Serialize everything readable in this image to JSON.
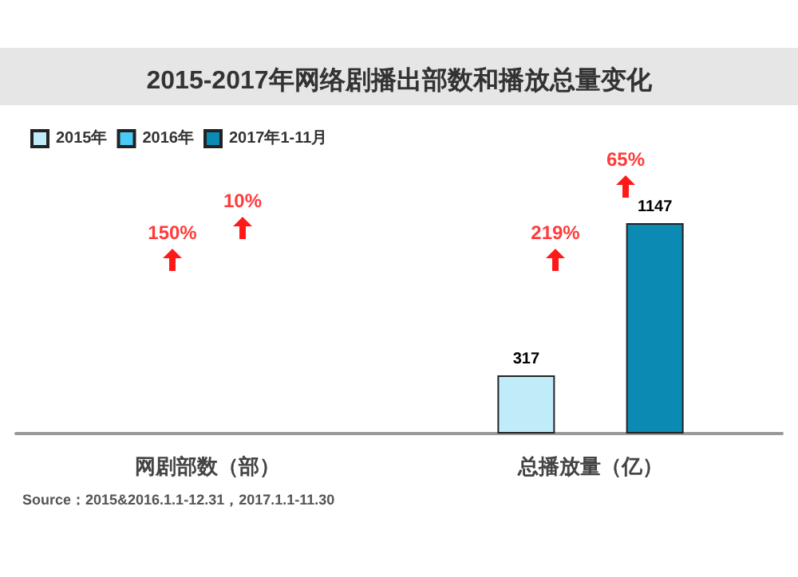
{
  "chart_data": {
    "type": "bar",
    "title": "2015-2017年网络剧播出部数和播放总量变化",
    "categories": [
      "网剧部数（部）",
      "总播放量（亿）"
    ],
    "legend": "top left",
    "data_labels": true,
    "ylim": [
      0,
      1147
    ],
    "series": [
      {
        "name": "2015年",
        "color": "#c0ecfa",
        "values": [
          null,
          317
        ]
      },
      {
        "name": "2016年",
        "color": "#48cbf5",
        "values": [
          null,
          null
        ]
      },
      {
        "name": "2017年1-11月",
        "color": "#0b8ab4",
        "values": [
          null,
          1147
        ]
      }
    ],
    "annotations": [
      "150%",
      "10%",
      "219%",
      "65%",
      "Source：2015&2016.1.1-12.31，2017.1.1-11.30"
    ]
  }
}
